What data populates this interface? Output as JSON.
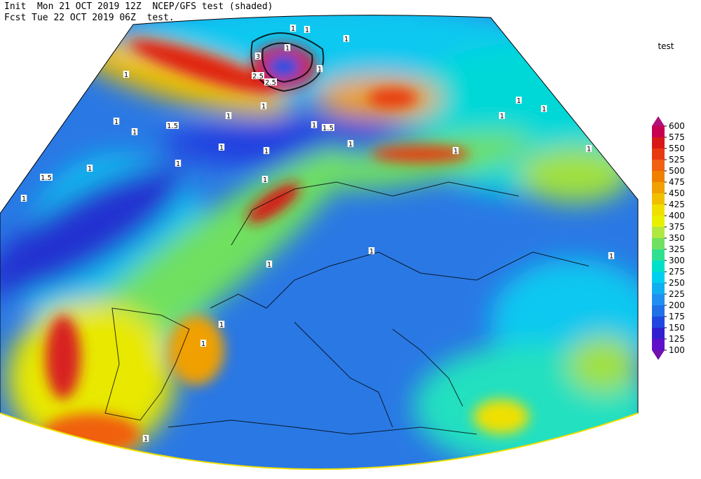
{
  "header": {
    "line1": "Init  Mon 21 OCT 2019 12Z  NCEP/GFS test (shaded)",
    "line2": "Fcst Tue 22 OCT 2019 06Z  test."
  },
  "legend": {
    "title": "test",
    "levels": [
      600,
      575,
      550,
      525,
      500,
      475,
      450,
      425,
      400,
      375,
      350,
      325,
      300,
      275,
      250,
      225,
      200,
      175,
      150,
      125,
      100
    ],
    "colors": [
      "#c80050",
      "#d81818",
      "#e83a10",
      "#f06010",
      "#f08000",
      "#f0a000",
      "#f0c000",
      "#f0e000",
      "#e8f000",
      "#b0e840",
      "#70e060",
      "#30e090",
      "#00e0c8",
      "#00d0f0",
      "#10b0f0",
      "#2090f0",
      "#2070e8",
      "#2048e0",
      "#3020d0",
      "#6010c8"
    ],
    "over_color": "#b0107a",
    "under_color": "#7010b0"
  },
  "contour_labels": [
    1,
    1,
    1,
    3,
    2.5,
    2.5,
    1,
    1,
    1,
    1,
    1.5,
    1.5,
    1,
    1,
    1,
    1,
    1,
    1,
    1,
    1,
    1,
    1.5,
    1,
    1,
    1,
    1,
    1,
    1,
    1,
    1,
    1,
    1,
    1,
    1,
    1
  ]
}
